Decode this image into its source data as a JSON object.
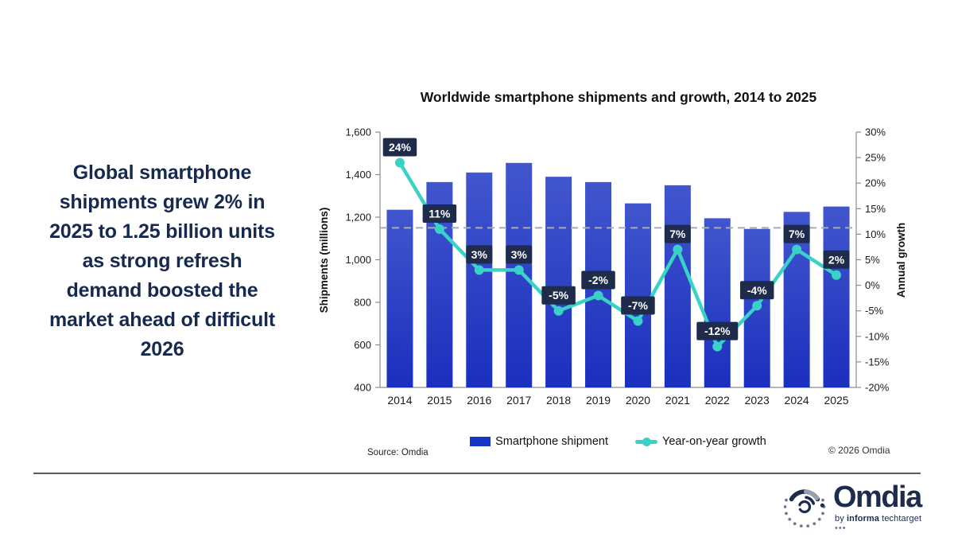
{
  "headline": {
    "lines": [
      "Global smartphone",
      "shipments grew 2% in",
      "2025 to 1.25 billion units",
      "as strong refresh",
      "demand boosted the",
      "market ahead of difficult",
      "2026"
    ]
  },
  "chart": {
    "title": "Worldwide smartphone shipments and growth, 2014 to 2025",
    "left_axis_title": "Shipments (millions)",
    "right_axis_title": "Annual growth",
    "source": "Source: Omdia",
    "copyright": "© 2026 Omdia",
    "legend": [
      {
        "label": "Smartphone shipment",
        "type": "bar"
      },
      {
        "label": "Year-on-year growth",
        "type": "line"
      }
    ]
  },
  "chart_data": {
    "type": "bar",
    "subtype": "bar+line combo, dual axis",
    "title": "Worldwide smartphone shipments and growth, 2014 to 2025",
    "categories": [
      "2014",
      "2015",
      "2016",
      "2017",
      "2018",
      "2019",
      "2020",
      "2021",
      "2022",
      "2023",
      "2024",
      "2025"
    ],
    "series": [
      {
        "name": "Smartphone shipment",
        "type": "bar",
        "axis": "left",
        "values": [
          1235,
          1365,
          1410,
          1455,
          1390,
          1365,
          1265,
          1350,
          1195,
          1145,
          1225,
          1250
        ]
      },
      {
        "name": "Year-on-year growth",
        "type": "line",
        "axis": "right",
        "values": [
          24,
          11,
          3,
          3,
          -5,
          -2,
          -7,
          7,
          -12,
          -4,
          7,
          2
        ],
        "point_labels": [
          "24%",
          "11%",
          "3%",
          "3%",
          "-5%",
          "-2%",
          "-7%",
          "7%",
          "-12%",
          "-4%",
          "7%",
          "2%"
        ]
      }
    ],
    "left_axis": {
      "label": "Shipments (millions)",
      "min": 400,
      "max": 1600,
      "step": 200
    },
    "right_axis": {
      "label": "Annual growth",
      "min": -20,
      "max": 30,
      "step": 5,
      "suffix": "%"
    },
    "reference_line": {
      "axis": "left",
      "value": 1150,
      "style": "dashed"
    },
    "legend_position": "bottom",
    "grid": false
  },
  "branding": {
    "logo_text": "Omdia",
    "tagline_prefix": "by ",
    "tagline_brand": "informa",
    "tagline_suffix": " techtarget ",
    "tagline_dots": "•••"
  },
  "colors": {
    "headline": "#16294e",
    "bar_top": "#4156cd",
    "bar_bottom": "#1a2fbe",
    "legend_bar_swatch": "#1535c4",
    "line": "#3ad1c7",
    "chip_bg": "#1e2b4b",
    "chip_text": "#ffffff",
    "axis": "#8c8c8c",
    "axis_text": "#1a1a1a",
    "reference_line": "#a6abb3",
    "brand_navy": "#1d2b4d"
  }
}
